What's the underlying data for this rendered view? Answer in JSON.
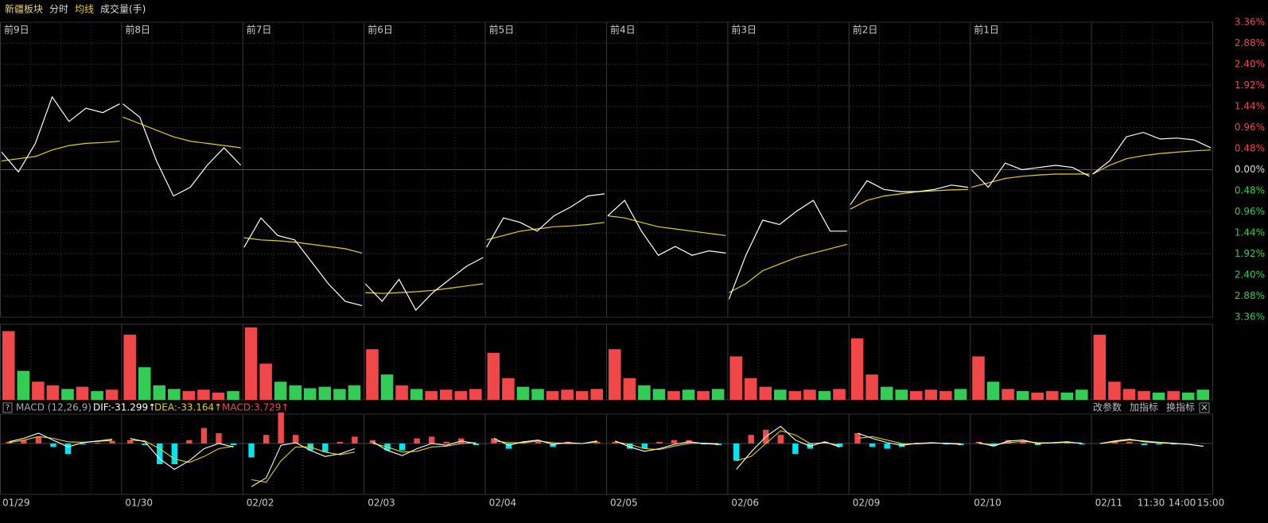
{
  "toolbar": [
    "新疆板块",
    "分时",
    "均线",
    "成交量(手)"
  ],
  "chart_data": {
    "type": "intraday",
    "ylim": [
      -3.36,
      3.36
    ],
    "yticks": [
      {
        "value": 3.36,
        "label": "3.36%"
      },
      {
        "value": 2.88,
        "label": "2.88%"
      },
      {
        "value": 2.4,
        "label": "2.40%"
      },
      {
        "value": 1.92,
        "label": "1.92%"
      },
      {
        "value": 1.44,
        "label": "1.44%"
      },
      {
        "value": 0.96,
        "label": "0.96%"
      },
      {
        "value": 0.48,
        "label": "0.48%"
      },
      {
        "value": 0,
        "label": "0.00%"
      },
      {
        "value": -0.48,
        "label": "0.48%"
      },
      {
        "value": -0.96,
        "label": "0.96%"
      },
      {
        "value": -1.44,
        "label": "1.44%"
      },
      {
        "value": -1.92,
        "label": "1.92%"
      },
      {
        "value": -2.4,
        "label": "2.40%"
      },
      {
        "value": -2.88,
        "label": "2.88%"
      },
      {
        "value": -3.36,
        "label": "3.36%"
      }
    ],
    "colors": {
      "price": "#ffffff",
      "avg": "#e6d200",
      "up": "#f04848",
      "down": "#33cc55",
      "macd_up": "#f04848",
      "macd_down": "#00e5ee",
      "dif": "#ffffff",
      "dea": "#e6d200"
    },
    "days": [
      {
        "label": "前9日",
        "date": "01/29",
        "price": [
          0.4,
          -0.05,
          0.6,
          1.66,
          1.1,
          1.4,
          1.3,
          1.5
        ],
        "avg": [
          0.2,
          0.25,
          0.3,
          0.45,
          0.55,
          0.6,
          0.62,
          0.65
        ],
        "volume": [
          95,
          40,
          25,
          20,
          15,
          18,
          12,
          14
        ],
        "dif": [
          20,
          60,
          120,
          40,
          -40,
          10,
          30,
          50
        ],
        "dea": [
          10,
          40,
          80,
          60,
          20,
          15,
          25,
          35
        ],
        "macd": [
          20,
          40,
          80,
          -40,
          -120,
          -10,
          10,
          30
        ]
      },
      {
        "label": "前8日",
        "date": "01/30",
        "price": [
          1.5,
          1.2,
          0.2,
          -0.6,
          -0.4,
          0.1,
          0.5,
          0.1
        ],
        "avg": [
          1.2,
          1.05,
          0.9,
          0.75,
          0.65,
          0.6,
          0.55,
          0.5
        ],
        "volume": [
          90,
          45,
          20,
          15,
          12,
          14,
          10,
          12
        ],
        "dif": [
          60,
          20,
          -180,
          -300,
          -200,
          -60,
          0,
          -40
        ],
        "dea": [
          40,
          30,
          -60,
          -180,
          -220,
          -150,
          -60,
          -30
        ],
        "macd": [
          40,
          -20,
          -240,
          -240,
          40,
          180,
          120,
          -20
        ]
      },
      {
        "label": "前7日",
        "date": "02/02",
        "price": [
          -1.77,
          -1.1,
          -1.5,
          -1.6,
          -2.1,
          -2.6,
          -3.0,
          -3.1
        ],
        "avg": [
          -1.55,
          -1.6,
          -1.62,
          -1.65,
          -1.7,
          -1.75,
          -1.8,
          -1.9
        ],
        "volume": [
          100,
          50,
          25,
          20,
          16,
          18,
          15,
          20
        ],
        "dif": [
          -500,
          -400,
          -20,
          10,
          -80,
          -150,
          -120,
          -60
        ],
        "dea": [
          -420,
          -450,
          -200,
          -40,
          -40,
          -100,
          -130,
          -100
        ],
        "macd": [
          -160,
          100,
          360,
          100,
          -80,
          -100,
          20,
          80
        ]
      },
      {
        "label": "前6日",
        "date": "02/03",
        "price": [
          -2.6,
          -3.0,
          -2.5,
          -3.2,
          -2.8,
          -2.5,
          -2.2,
          -2.0
        ],
        "avg": [
          -2.8,
          -2.82,
          -2.8,
          -2.78,
          -2.75,
          -2.7,
          -2.65,
          -2.6
        ],
        "volume": [
          70,
          35,
          20,
          15,
          12,
          14,
          12,
          15
        ],
        "dif": [
          20,
          -80,
          -140,
          -60,
          0,
          -20,
          30,
          0
        ],
        "dea": [
          0,
          -40,
          -100,
          -90,
          -40,
          -30,
          0,
          10
        ],
        "macd": [
          40,
          -80,
          -80,
          60,
          80,
          20,
          60,
          -20
        ]
      },
      {
        "label": "前5日",
        "date": "02/04",
        "price": [
          -1.77,
          -1.1,
          -1.2,
          -1.4,
          -1.05,
          -0.85,
          -0.6,
          -0.55
        ],
        "avg": [
          -1.6,
          -1.5,
          -1.4,
          -1.35,
          -1.3,
          -1.28,
          -1.25,
          -1.2
        ],
        "volume": [
          65,
          30,
          18,
          15,
          12,
          14,
          12,
          15
        ],
        "dif": [
          60,
          -20,
          20,
          40,
          -10,
          10,
          0,
          30
        ],
        "dea": [
          30,
          10,
          10,
          30,
          10,
          0,
          0,
          20
        ],
        "macd": [
          60,
          -60,
          20,
          20,
          -40,
          20,
          0,
          20
        ]
      },
      {
        "label": "前4日",
        "date": "02/05",
        "price": [
          -1.05,
          -0.7,
          -1.4,
          -1.95,
          -1.75,
          -1.95,
          -1.85,
          -1.9
        ],
        "avg": [
          -1.05,
          -1.1,
          -1.2,
          -1.3,
          -1.35,
          -1.4,
          -1.45,
          -1.5
        ],
        "volume": [
          70,
          30,
          20,
          15,
          12,
          14,
          12,
          15
        ],
        "dif": [
          30,
          -40,
          -90,
          -60,
          -10,
          20,
          0,
          -10
        ],
        "dea": [
          20,
          -10,
          -60,
          -70,
          -30,
          0,
          5,
          0
        ],
        "macd": [
          20,
          -60,
          -60,
          20,
          40,
          40,
          -10,
          -20
        ]
      },
      {
        "label": "前3日",
        "date": "02/06",
        "price": [
          -2.95,
          -1.95,
          -1.15,
          -1.25,
          -0.95,
          -0.7,
          -1.4,
          -1.4
        ],
        "avg": [
          -2.8,
          -2.6,
          -2.3,
          -2.15,
          -2.0,
          -1.9,
          -1.8,
          -1.7
        ],
        "volume": [
          60,
          30,
          18,
          14,
          12,
          14,
          12,
          15
        ],
        "dif": [
          -300,
          -100,
          80,
          200,
          40,
          -30,
          20,
          -40
        ],
        "dea": [
          -200,
          -150,
          0,
          150,
          100,
          0,
          10,
          -20
        ],
        "macd": [
          -200,
          100,
          160,
          100,
          -120,
          -60,
          20,
          -40
        ]
      },
      {
        "label": "前2日",
        "date": "02/09",
        "price": [
          -0.8,
          -0.25,
          -0.45,
          -0.5,
          -0.5,
          -0.45,
          -0.35,
          -0.4
        ],
        "avg": [
          -0.9,
          -0.7,
          -0.6,
          -0.55,
          -0.5,
          -0.48,
          -0.46,
          -0.45
        ],
        "volume": [
          85,
          35,
          18,
          14,
          12,
          14,
          12,
          15
        ],
        "dif": [
          120,
          60,
          10,
          -20,
          0,
          10,
          0,
          -10
        ],
        "dea": [
          60,
          80,
          40,
          0,
          -5,
          5,
          5,
          0
        ],
        "macd": [
          120,
          -40,
          -60,
          -40,
          10,
          10,
          -10,
          -20
        ]
      },
      {
        "label": "前1日",
        "date": "02/10",
        "price": [
          0.0,
          -0.4,
          0.15,
          0.0,
          0.05,
          0.1,
          0.05,
          -0.15
        ],
        "avg": [
          -0.4,
          -0.3,
          -0.2,
          -0.15,
          -0.12,
          -0.1,
          -0.1,
          -0.1
        ],
        "volume": [
          60,
          25,
          15,
          12,
          10,
          12,
          10,
          14
        ],
        "dif": [
          10,
          -30,
          30,
          40,
          0,
          10,
          20,
          0
        ],
        "dea": [
          0,
          -15,
          10,
          25,
          10,
          8,
          15,
          5
        ],
        "macd": [
          20,
          -30,
          40,
          30,
          -20,
          5,
          10,
          -10
        ]
      },
      {
        "date": "02/11",
        "price": [
          -0.1,
          0.2,
          0.75,
          0.85,
          0.7,
          0.72,
          0.68,
          0.5
        ],
        "avg": [
          -0.1,
          0.1,
          0.25,
          0.32,
          0.37,
          0.4,
          0.43,
          0.45
        ],
        "volume": [
          90,
          25,
          15,
          12,
          10,
          12,
          10,
          14
        ],
        "dif": [
          0,
          30,
          50,
          20,
          10,
          0,
          -10,
          -31.299
        ],
        "dea": [
          0,
          20,
          40,
          30,
          15,
          5,
          -10,
          -33.164
        ],
        "macd": [
          0,
          20,
          20,
          -20,
          -10,
          -10,
          0,
          3.729
        ]
      }
    ],
    "time_labels": [
      "11:30",
      "14:00",
      "15:00"
    ],
    "macd_header": {
      "help": "?",
      "name": "MACD (12,26,9)",
      "dif": "DIF:-31.299↑",
      "dea": "DEA:-33.164↑",
      "macd": "MACD:3.729↑"
    },
    "macd_buttons": [
      "改参数",
      "加指标",
      "换指标"
    ],
    "close": "×"
  }
}
